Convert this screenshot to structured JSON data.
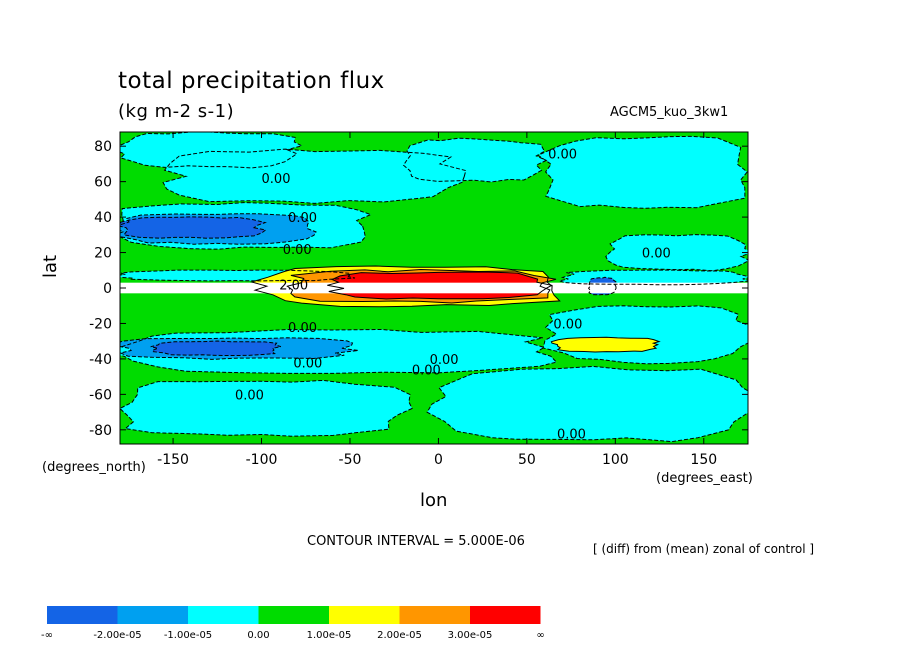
{
  "title": "total precipitation flux",
  "units": "(kg m-2 s-1)",
  "run_id": "AGCM5_kuo_3kw1",
  "contour_interval": "CONTOUR INTERVAL = 5.000E-06",
  "diff_note": "[ (diff) from (mean) zonal of control ]",
  "colors": {
    "fill_bands": [
      "#1464e6",
      "#00a0f0",
      "#00ffff",
      "#00dc00",
      "#ffff00",
      "#ff9600",
      "#ff0000"
    ],
    "missing": "#ffffff"
  },
  "chart_data": {
    "type": "heatmap",
    "subtype": "filled contour map",
    "xlabel": "lon",
    "ylabel": "lat",
    "x_units": "(degrees_east)",
    "y_units": "(degrees_north)",
    "xlim": [
      -180,
      175
    ],
    "ylim": [
      -88,
      88
    ],
    "x_ticks": [
      -150,
      -100,
      -50,
      0,
      50,
      100,
      150
    ],
    "y_ticks": [
      80,
      60,
      40,
      20,
      0,
      -20,
      -40,
      -60,
      -80
    ],
    "contour_labels": [
      "0.00",
      "0.00",
      "0.00",
      "0.00",
      "0.00",
      "0.00",
      "0.00",
      "0.00",
      "0.00",
      "0.00",
      "0.00",
      "0.00",
      "2.00"
    ],
    "colorbar": {
      "levels": [
        -2e-05,
        -1e-05,
        0.0,
        1e-05,
        2e-05,
        3e-05
      ],
      "labels": [
        "-∞",
        "-2.00e-05",
        "-1.00e-05",
        "0.00",
        "1.00e-05",
        "2.00e-05",
        "3.00e-05",
        "∞"
      ]
    },
    "regions": [
      {
        "name": "background",
        "band": 3,
        "lon": [
          -180,
          175
        ],
        "lat": [
          -88,
          88
        ]
      },
      {
        "band": 2,
        "lon": [
          -180,
          -80
        ],
        "lat": [
          68,
          88
        ]
      },
      {
        "band": 2,
        "lon": [
          -150,
          10
        ],
        "lat": [
          48,
          78
        ]
      },
      {
        "band": 2,
        "lon": [
          -20,
          60
        ],
        "lat": [
          60,
          84
        ]
      },
      {
        "band": 2,
        "lon": [
          60,
          175
        ],
        "lat": [
          45,
          86
        ]
      },
      {
        "band": 2,
        "lon": [
          -180,
          -40
        ],
        "lat": [
          22,
          48
        ]
      },
      {
        "band": 1,
        "lon": [
          -180,
          -70
        ],
        "lat": [
          25,
          42
        ]
      },
      {
        "band": 0,
        "lon": [
          -180,
          -100
        ],
        "lat": [
          28,
          40
        ]
      },
      {
        "band": 2,
        "lon": [
          95,
          175
        ],
        "lat": [
          10,
          30
        ]
      },
      {
        "band": 2,
        "lon": [
          70,
          175
        ],
        "lat": [
          2,
          10
        ]
      },
      {
        "band": 2,
        "lon": [
          -180,
          -50
        ],
        "lat": [
          4,
          10
        ]
      },
      {
        "band": 2,
        "lon": [
          -180,
          60
        ],
        "lat": [
          -48,
          -24
        ]
      },
      {
        "band": 1,
        "lon": [
          -180,
          -50
        ],
        "lat": [
          -40,
          -28
        ]
      },
      {
        "band": 0,
        "lon": [
          -160,
          -90
        ],
        "lat": [
          -38,
          -30
        ]
      },
      {
        "band": 2,
        "lon": [
          -180,
          -20
        ],
        "lat": [
          -84,
          -52
        ]
      },
      {
        "band": 2,
        "lon": [
          0,
          175
        ],
        "lat": [
          -86,
          -45
        ]
      },
      {
        "band": 2,
        "lon": [
          60,
          175
        ],
        "lat": [
          -42,
          -10
        ]
      },
      {
        "band": 4,
        "lon": [
          65,
          125
        ],
        "lat": [
          -36,
          -28
        ]
      },
      {
        "band": 4,
        "lon": [
          -100,
          70
        ],
        "lat": [
          -10,
          12
        ]
      },
      {
        "band": 5,
        "lon": [
          -85,
          65
        ],
        "lat": [
          -8,
          10
        ]
      },
      {
        "band": 6,
        "lon": [
          -60,
          60
        ],
        "lat": [
          -6,
          9
        ]
      },
      {
        "band": 0,
        "lon": [
          85,
          100
        ],
        "lat": [
          -4,
          6
        ]
      },
      {
        "name": "missing",
        "band": -1,
        "lon": [
          -180,
          175
        ],
        "lat": [
          -3,
          3
        ]
      }
    ]
  }
}
